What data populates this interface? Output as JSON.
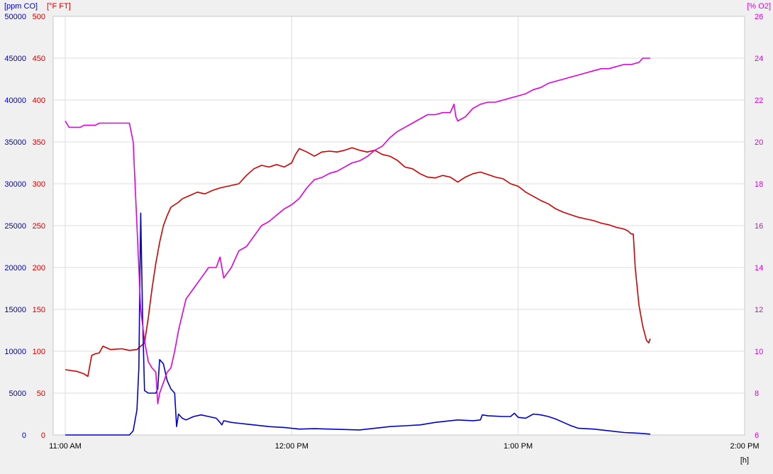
{
  "chart_data": {
    "type": "line",
    "grid": true,
    "axes": {
      "co": {
        "label": "[ppm CO]",
        "min": 0,
        "max": 50000,
        "ticks": [
          0,
          5000,
          10000,
          15000,
          20000,
          25000,
          30000,
          35000,
          40000,
          45000,
          50000
        ],
        "color": "#0000cc"
      },
      "temp": {
        "label": "[°F FT]",
        "min": 0,
        "max": 500,
        "ticks": [
          0,
          50,
          100,
          150,
          200,
          250,
          300,
          350,
          400,
          450,
          500
        ],
        "color": "#d00000"
      },
      "o2": {
        "label": "[% O2]",
        "min": 6,
        "max": 26,
        "ticks": [
          6,
          8,
          10,
          12,
          14,
          16,
          18,
          20,
          22,
          24,
          26
        ],
        "color": "#e000e0"
      },
      "x": {
        "label": "[h]",
        "min": 0,
        "max": 180,
        "ticks": [
          {
            "v": 0,
            "label": "11:00 AM"
          },
          {
            "v": 60,
            "label": "12:00 PM"
          },
          {
            "v": 120,
            "label": "1:00 PM"
          },
          {
            "v": 180,
            "label": "2:00 PM"
          }
        ]
      }
    },
    "series": [
      {
        "axis": "temp",
        "color": "#d00000",
        "points": [
          [
            0,
            78
          ],
          [
            3,
            76
          ],
          [
            5,
            73
          ],
          [
            6,
            70
          ],
          [
            7,
            95
          ],
          [
            8,
            97
          ],
          [
            9,
            98
          ],
          [
            10,
            106
          ],
          [
            12,
            102
          ],
          [
            15,
            103
          ],
          [
            17,
            101
          ],
          [
            19,
            102
          ],
          [
            21,
            110
          ],
          [
            22,
            140
          ],
          [
            23,
            175
          ],
          [
            24,
            205
          ],
          [
            25,
            230
          ],
          [
            26,
            250
          ],
          [
            27,
            262
          ],
          [
            28,
            272
          ],
          [
            30,
            278
          ],
          [
            31,
            282
          ],
          [
            33,
            286
          ],
          [
            35,
            290
          ],
          [
            37,
            288
          ],
          [
            39,
            292
          ],
          [
            41,
            295
          ],
          [
            43,
            297
          ],
          [
            46,
            300
          ],
          [
            48,
            310
          ],
          [
            50,
            318
          ],
          [
            52,
            322
          ],
          [
            54,
            320
          ],
          [
            56,
            323
          ],
          [
            58,
            320
          ],
          [
            60,
            325
          ],
          [
            61,
            335
          ],
          [
            62,
            342
          ],
          [
            64,
            338
          ],
          [
            66,
            333
          ],
          [
            68,
            338
          ],
          [
            70,
            339
          ],
          [
            72,
            338
          ],
          [
            74,
            340
          ],
          [
            76,
            343
          ],
          [
            78,
            340
          ],
          [
            80,
            338
          ],
          [
            82,
            340
          ],
          [
            84,
            335
          ],
          [
            86,
            333
          ],
          [
            88,
            328
          ],
          [
            90,
            320
          ],
          [
            92,
            318
          ],
          [
            94,
            312
          ],
          [
            96,
            308
          ],
          [
            98,
            307
          ],
          [
            100,
            310
          ],
          [
            102,
            308
          ],
          [
            104,
            302
          ],
          [
            106,
            308
          ],
          [
            108,
            312
          ],
          [
            110,
            314
          ],
          [
            112,
            311
          ],
          [
            114,
            308
          ],
          [
            116,
            306
          ],
          [
            118,
            300
          ],
          [
            120,
            297
          ],
          [
            122,
            290
          ],
          [
            124,
            285
          ],
          [
            126,
            280
          ],
          [
            128,
            276
          ],
          [
            130,
            270
          ],
          [
            132,
            266
          ],
          [
            134,
            263
          ],
          [
            136,
            260
          ],
          [
            138,
            258
          ],
          [
            140,
            256
          ],
          [
            142,
            253
          ],
          [
            144,
            251
          ],
          [
            146,
            248
          ],
          [
            148,
            246
          ],
          [
            149,
            244
          ],
          [
            150,
            240
          ],
          [
            150.5,
            240
          ],
          [
            151,
            200
          ],
          [
            152,
            155
          ],
          [
            153,
            130
          ],
          [
            154,
            113
          ],
          [
            154.6,
            110
          ],
          [
            155,
            115
          ]
        ]
      },
      {
        "axis": "co",
        "color": "#0000cc",
        "points": [
          [
            0,
            0
          ],
          [
            10,
            0
          ],
          [
            17,
            0
          ],
          [
            18,
            500
          ],
          [
            19,
            3000
          ],
          [
            19.5,
            8000
          ],
          [
            20,
            26500
          ],
          [
            20.5,
            14000
          ],
          [
            21,
            5300
          ],
          [
            22,
            5000
          ],
          [
            24,
            5000
          ],
          [
            24.5,
            5500
          ],
          [
            25,
            9000
          ],
          [
            26,
            8500
          ],
          [
            27,
            6500
          ],
          [
            28,
            5500
          ],
          [
            29,
            5000
          ],
          [
            29.5,
            1000
          ],
          [
            30,
            2500
          ],
          [
            31,
            2000
          ],
          [
            32,
            1800
          ],
          [
            34,
            2200
          ],
          [
            36,
            2400
          ],
          [
            38,
            2200
          ],
          [
            40,
            2000
          ],
          [
            41,
            1500
          ],
          [
            41.5,
            1200
          ],
          [
            42,
            1700
          ],
          [
            44,
            1500
          ],
          [
            46,
            1400
          ],
          [
            48,
            1300
          ],
          [
            50,
            1200
          ],
          [
            54,
            1000
          ],
          [
            58,
            900
          ],
          [
            62,
            700
          ],
          [
            66,
            750
          ],
          [
            70,
            700
          ],
          [
            74,
            650
          ],
          [
            78,
            600
          ],
          [
            82,
            800
          ],
          [
            86,
            1000
          ],
          [
            90,
            1100
          ],
          [
            94,
            1200
          ],
          [
            98,
            1500
          ],
          [
            102,
            1700
          ],
          [
            104,
            1800
          ],
          [
            108,
            1700
          ],
          [
            110,
            1800
          ],
          [
            110.5,
            2400
          ],
          [
            112,
            2300
          ],
          [
            116,
            2200
          ],
          [
            118,
            2200
          ],
          [
            119,
            2600
          ],
          [
            120,
            2100
          ],
          [
            122,
            2000
          ],
          [
            124,
            2500
          ],
          [
            126,
            2400
          ],
          [
            128,
            2200
          ],
          [
            130,
            1900
          ],
          [
            132,
            1500
          ],
          [
            134,
            1100
          ],
          [
            136,
            800
          ],
          [
            140,
            700
          ],
          [
            144,
            500
          ],
          [
            148,
            300
          ],
          [
            152,
            200
          ],
          [
            155,
            100
          ]
        ]
      },
      {
        "axis": "o2",
        "color": "#e000e0",
        "points": [
          [
            0,
            21.0
          ],
          [
            1,
            20.7
          ],
          [
            4,
            20.7
          ],
          [
            5,
            20.8
          ],
          [
            8,
            20.8
          ],
          [
            9,
            20.9
          ],
          [
            12,
            20.9
          ],
          [
            15,
            20.9
          ],
          [
            17,
            20.9
          ],
          [
            18,
            20.0
          ],
          [
            19,
            16.0
          ],
          [
            20,
            12.0
          ],
          [
            21,
            10.5
          ],
          [
            22,
            9.5
          ],
          [
            23,
            9.2
          ],
          [
            24,
            9.0
          ],
          [
            24.5,
            7.5
          ],
          [
            25,
            8.0
          ],
          [
            26,
            8.5
          ],
          [
            27,
            9.0
          ],
          [
            28,
            9.2
          ],
          [
            29,
            10.0
          ],
          [
            30,
            11.0
          ],
          [
            32,
            12.5
          ],
          [
            34,
            13.0
          ],
          [
            36,
            13.5
          ],
          [
            38,
            14.0
          ],
          [
            40,
            14.0
          ],
          [
            41,
            14.5
          ],
          [
            42,
            13.5
          ],
          [
            44,
            14.0
          ],
          [
            46,
            14.8
          ],
          [
            48,
            15.0
          ],
          [
            50,
            15.5
          ],
          [
            52,
            16.0
          ],
          [
            54,
            16.2
          ],
          [
            56,
            16.5
          ],
          [
            58,
            16.8
          ],
          [
            60,
            17.0
          ],
          [
            62,
            17.3
          ],
          [
            64,
            17.8
          ],
          [
            66,
            18.2
          ],
          [
            68,
            18.3
          ],
          [
            70,
            18.5
          ],
          [
            72,
            18.6
          ],
          [
            74,
            18.8
          ],
          [
            76,
            19.0
          ],
          [
            78,
            19.1
          ],
          [
            80,
            19.3
          ],
          [
            82,
            19.6
          ],
          [
            84,
            19.8
          ],
          [
            86,
            20.2
          ],
          [
            88,
            20.5
          ],
          [
            90,
            20.7
          ],
          [
            92,
            20.9
          ],
          [
            94,
            21.1
          ],
          [
            96,
            21.3
          ],
          [
            98,
            21.3
          ],
          [
            100,
            21.4
          ],
          [
            102,
            21.4
          ],
          [
            103,
            21.8
          ],
          [
            103.5,
            21.2
          ],
          [
            104,
            21.0
          ],
          [
            106,
            21.2
          ],
          [
            108,
            21.6
          ],
          [
            110,
            21.8
          ],
          [
            112,
            21.9
          ],
          [
            114,
            21.9
          ],
          [
            116,
            22.0
          ],
          [
            118,
            22.1
          ],
          [
            120,
            22.2
          ],
          [
            122,
            22.3
          ],
          [
            124,
            22.5
          ],
          [
            126,
            22.6
          ],
          [
            128,
            22.8
          ],
          [
            130,
            22.9
          ],
          [
            132,
            23.0
          ],
          [
            134,
            23.1
          ],
          [
            136,
            23.2
          ],
          [
            138,
            23.3
          ],
          [
            140,
            23.4
          ],
          [
            142,
            23.5
          ],
          [
            144,
            23.5
          ],
          [
            146,
            23.6
          ],
          [
            148,
            23.7
          ],
          [
            150,
            23.7
          ],
          [
            152,
            23.8
          ],
          [
            153,
            24.0
          ],
          [
            154,
            24.0
          ],
          [
            155,
            24.0
          ]
        ]
      }
    ]
  }
}
